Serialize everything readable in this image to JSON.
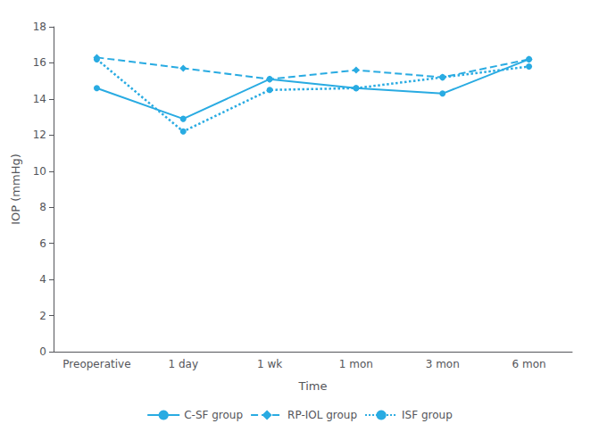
{
  "chart_data": {
    "type": "line",
    "xlabel": "Time",
    "ylabel": "IOP (mmHg)",
    "categories": [
      "Preoperative",
      "1 day",
      "1 wk",
      "1 mon",
      "3 mon",
      "6 mon"
    ],
    "series": [
      {
        "name": "C-SF group",
        "color": "#29ABE2",
        "line_style": "solid",
        "marker": "circle",
        "values": [
          14.6,
          12.9,
          15.1,
          14.6,
          14.3,
          16.2
        ]
      },
      {
        "name": "RP-IOL group",
        "color": "#29ABE2",
        "line_style": "dashed",
        "marker": "diamond",
        "values": [
          16.3,
          15.7,
          15.1,
          15.6,
          15.2,
          16.2
        ]
      },
      {
        "name": "ISF group",
        "color": "#29ABE2",
        "line_style": "dotted",
        "marker": "circle",
        "values": [
          16.2,
          12.2,
          14.5,
          14.6,
          15.2,
          15.8
        ]
      }
    ],
    "ylim": [
      0,
      18
    ],
    "yticks": [
      0,
      2,
      4,
      6,
      8,
      10,
      12,
      14,
      16,
      18
    ],
    "legend": "bottom",
    "grid": false
  }
}
